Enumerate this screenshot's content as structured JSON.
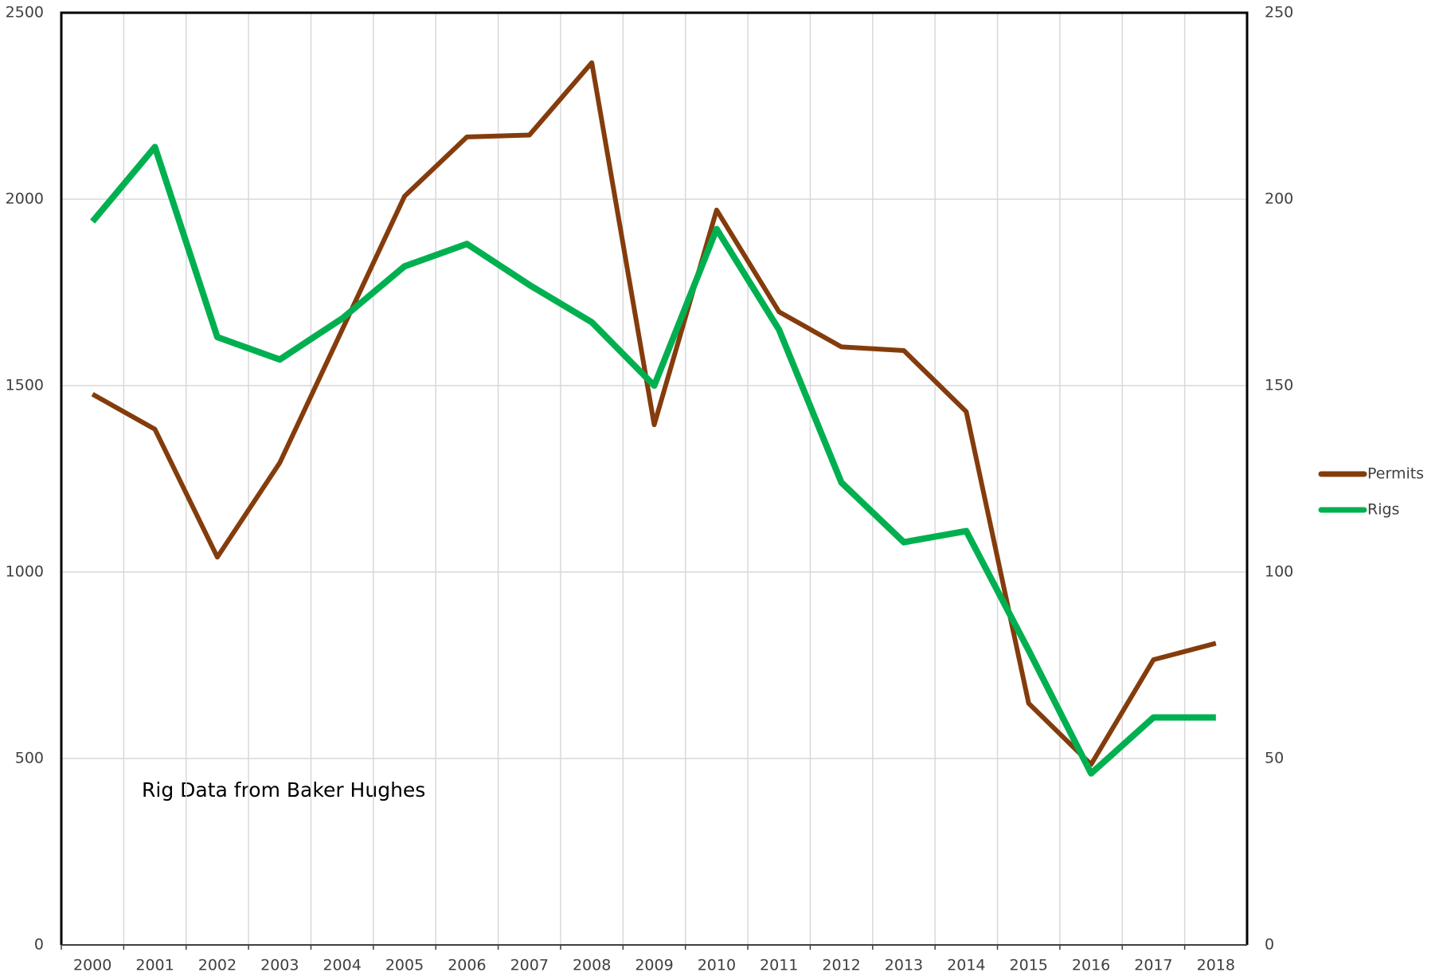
{
  "chart_data": {
    "type": "line",
    "annotation": "Rig Data from Baker Hughes",
    "categories": [
      "2000",
      "2001",
      "2002",
      "2003",
      "2004",
      "2005",
      "2006",
      "2007",
      "2008",
      "2009",
      "2010",
      "2011",
      "2012",
      "2013",
      "2014",
      "2015",
      "2016",
      "2017",
      "2018"
    ],
    "series": [
      {
        "name": "Permits",
        "color": "#843c0c",
        "axis": "y",
        "values": [
          1477,
          1383,
          1040,
          1293,
          1650,
          2008,
          2167,
          2172,
          2366,
          1395,
          1971,
          1698,
          1604,
          1594,
          1430,
          648,
          484,
          765,
          809
        ]
      },
      {
        "name": "Rigs",
        "color": "#00b050",
        "axis": "y2",
        "values": [
          194,
          214,
          163,
          157,
          168,
          182,
          188,
          177,
          167,
          150,
          192,
          165,
          124,
          108,
          111,
          79,
          46,
          61,
          61
        ]
      }
    ],
    "ylim": [
      0,
      2500
    ],
    "yticks": [
      0,
      500,
      1000,
      1500,
      2000,
      2500
    ],
    "y2lim": [
      0,
      250
    ],
    "y2ticks": [
      0,
      50,
      100,
      150,
      200,
      250
    ],
    "grid": true,
    "legend": "right"
  }
}
